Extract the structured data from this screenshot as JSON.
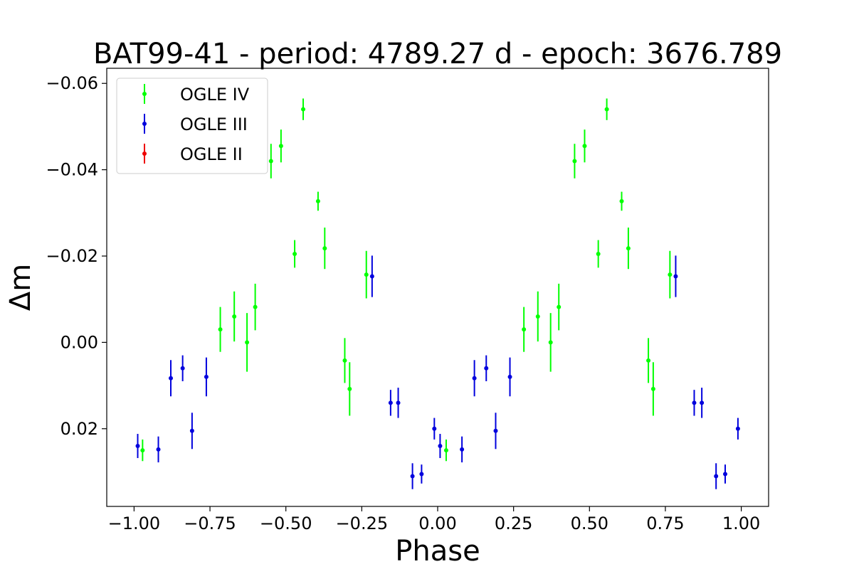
{
  "chart_data": {
    "type": "scatter",
    "title": "BAT99-41 - period: 4789.27 d - epoch: 3676.789",
    "xlabel": "Phase",
    "ylabel": "Δm",
    "xlim": [
      -1.09,
      1.09
    ],
    "ylim": [
      0.038,
      -0.0635
    ],
    "y_inverted": true,
    "x_ticks": [
      -1.0,
      -0.75,
      -0.5,
      -0.25,
      0.0,
      0.25,
      0.5,
      0.75,
      1.0
    ],
    "x_tick_labels": [
      "−1.00",
      "−0.75",
      "−0.50",
      "−0.25",
      "0.00",
      "0.25",
      "0.50",
      "0.75",
      "1.00"
    ],
    "y_ticks": [
      -0.06,
      -0.04,
      -0.02,
      0.0,
      0.02
    ],
    "y_tick_labels": [
      "−0.06",
      "−0.04",
      "−0.02",
      "0.00",
      "0.02"
    ],
    "grid": false,
    "legend_position": "top-left",
    "series": [
      {
        "name": "OGLE IV",
        "color": "#00ff00",
        "points": [
          {
            "x": -0.972,
            "y": 0.025,
            "err": 0.0025
          },
          {
            "x": -0.716,
            "y": -0.003,
            "err": 0.0052
          },
          {
            "x": -0.67,
            "y": -0.006,
            "err": 0.0058
          },
          {
            "x": -0.628,
            "y": 0.0,
            "err": 0.0068
          },
          {
            "x": -0.601,
            "y": -0.0082,
            "err": 0.0054
          },
          {
            "x": -0.549,
            "y": -0.042,
            "err": 0.004
          },
          {
            "x": -0.516,
            "y": -0.0455,
            "err": 0.0038
          },
          {
            "x": -0.471,
            "y": -0.0205,
            "err": 0.0032
          },
          {
            "x": -0.443,
            "y": -0.054,
            "err": 0.0025
          },
          {
            "x": -0.394,
            "y": -0.0327,
            "err": 0.0022
          },
          {
            "x": -0.372,
            "y": -0.0218,
            "err": 0.0048
          },
          {
            "x": -0.306,
            "y": 0.0042,
            "err": 0.0052
          },
          {
            "x": -0.29,
            "y": 0.0108,
            "err": 0.0062
          },
          {
            "x": -0.235,
            "y": -0.0157,
            "err": 0.0055
          },
          {
            "x": 0.028,
            "y": 0.025,
            "err": 0.0025
          },
          {
            "x": 0.284,
            "y": -0.003,
            "err": 0.0052
          },
          {
            "x": 0.33,
            "y": -0.006,
            "err": 0.0058
          },
          {
            "x": 0.372,
            "y": 0.0,
            "err": 0.0068
          },
          {
            "x": 0.399,
            "y": -0.0082,
            "err": 0.0054
          },
          {
            "x": 0.451,
            "y": -0.042,
            "err": 0.004
          },
          {
            "x": 0.484,
            "y": -0.0455,
            "err": 0.0038
          },
          {
            "x": 0.529,
            "y": -0.0205,
            "err": 0.0032
          },
          {
            "x": 0.557,
            "y": -0.054,
            "err": 0.0025
          },
          {
            "x": 0.606,
            "y": -0.0327,
            "err": 0.0022
          },
          {
            "x": 0.628,
            "y": -0.0218,
            "err": 0.0048
          },
          {
            "x": 0.694,
            "y": 0.0042,
            "err": 0.0052
          },
          {
            "x": 0.71,
            "y": 0.0108,
            "err": 0.0062
          },
          {
            "x": 0.765,
            "y": -0.0157,
            "err": 0.0055
          }
        ]
      },
      {
        "name": "OGLE III",
        "color": "#0000dd",
        "points": [
          {
            "x": -0.988,
            "y": 0.024,
            "err": 0.0028
          },
          {
            "x": -0.92,
            "y": 0.0248,
            "err": 0.003
          },
          {
            "x": -0.879,
            "y": 0.0083,
            "err": 0.0042
          },
          {
            "x": -0.84,
            "y": 0.006,
            "err": 0.003
          },
          {
            "x": -0.809,
            "y": 0.0205,
            "err": 0.0042
          },
          {
            "x": -0.762,
            "y": 0.008,
            "err": 0.0045
          },
          {
            "x": -0.216,
            "y": -0.0153,
            "err": 0.0048
          },
          {
            "x": -0.155,
            "y": 0.014,
            "err": 0.003
          },
          {
            "x": -0.13,
            "y": 0.014,
            "err": 0.0035
          },
          {
            "x": -0.083,
            "y": 0.031,
            "err": 0.003
          },
          {
            "x": -0.053,
            "y": 0.0305,
            "err": 0.0022
          },
          {
            "x": -0.011,
            "y": 0.02,
            "err": 0.0025
          },
          {
            "x": 0.008,
            "y": 0.024,
            "err": 0.0028
          },
          {
            "x": 0.08,
            "y": 0.0248,
            "err": 0.003
          },
          {
            "x": 0.121,
            "y": 0.0083,
            "err": 0.0042
          },
          {
            "x": 0.16,
            "y": 0.006,
            "err": 0.003
          },
          {
            "x": 0.191,
            "y": 0.0205,
            "err": 0.0042
          },
          {
            "x": 0.238,
            "y": 0.008,
            "err": 0.0045
          },
          {
            "x": 0.784,
            "y": -0.0153,
            "err": 0.0048
          },
          {
            "x": 0.845,
            "y": 0.014,
            "err": 0.003
          },
          {
            "x": 0.87,
            "y": 0.014,
            "err": 0.0035
          },
          {
            "x": 0.917,
            "y": 0.031,
            "err": 0.003
          },
          {
            "x": 0.947,
            "y": 0.0305,
            "err": 0.0022
          },
          {
            "x": 0.989,
            "y": 0.02,
            "err": 0.0025
          }
        ]
      },
      {
        "name": "OGLE II",
        "color": "#ee0000",
        "points": []
      }
    ]
  }
}
